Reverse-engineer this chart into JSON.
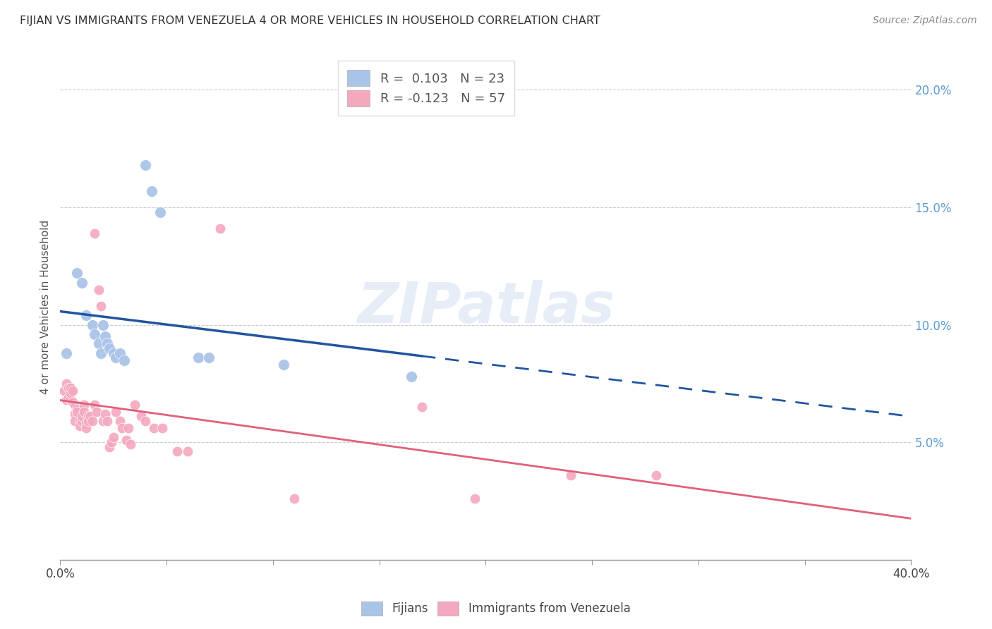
{
  "title": "FIJIAN VS IMMIGRANTS FROM VENEZUELA 4 OR MORE VEHICLES IN HOUSEHOLD CORRELATION CHART",
  "source": "Source: ZipAtlas.com",
  "ylabel": "4 or more Vehicles in Household",
  "xlim": [
    0.0,
    0.4
  ],
  "ylim": [
    0.0,
    0.215
  ],
  "yticks": [
    0.05,
    0.1,
    0.15,
    0.2
  ],
  "right_ytick_labels": [
    "5.0%",
    "10.0%",
    "15.0%",
    "20.0%"
  ],
  "fijian_R": 0.103,
  "fijian_N": 23,
  "venezuela_R": -0.123,
  "venezuela_N": 57,
  "fijian_color": "#aac4e8",
  "venezuela_color": "#f4a8be",
  "fijian_line_color": "#2155a0",
  "venezuela_line_color": "#e0607a",
  "watermark_text": "ZIPatlas",
  "legend_fijian_label": "Fijians",
  "legend_venezuela_label": "Immigrants from Venezuela",
  "fijian_points": [
    [
      0.003,
      0.088
    ],
    [
      0.008,
      0.122
    ],
    [
      0.01,
      0.118
    ],
    [
      0.012,
      0.104
    ],
    [
      0.015,
      0.1
    ],
    [
      0.016,
      0.096
    ],
    [
      0.018,
      0.092
    ],
    [
      0.019,
      0.088
    ],
    [
      0.02,
      0.1
    ],
    [
      0.021,
      0.095
    ],
    [
      0.022,
      0.092
    ],
    [
      0.023,
      0.09
    ],
    [
      0.025,
      0.088
    ],
    [
      0.026,
      0.086
    ],
    [
      0.028,
      0.088
    ],
    [
      0.03,
      0.085
    ],
    [
      0.04,
      0.168
    ],
    [
      0.043,
      0.157
    ],
    [
      0.047,
      0.148
    ],
    [
      0.065,
      0.086
    ],
    [
      0.07,
      0.086
    ],
    [
      0.105,
      0.083
    ],
    [
      0.165,
      0.078
    ]
  ],
  "venezuela_points": [
    [
      0.002,
      0.072
    ],
    [
      0.003,
      0.068
    ],
    [
      0.003,
      0.075
    ],
    [
      0.004,
      0.069
    ],
    [
      0.004,
      0.073
    ],
    [
      0.005,
      0.068
    ],
    [
      0.005,
      0.071
    ],
    [
      0.005,
      0.073
    ],
    [
      0.006,
      0.067
    ],
    [
      0.006,
      0.072
    ],
    [
      0.007,
      0.062
    ],
    [
      0.007,
      0.059
    ],
    [
      0.007,
      0.066
    ],
    [
      0.008,
      0.064
    ],
    [
      0.008,
      0.063
    ],
    [
      0.009,
      0.059
    ],
    [
      0.016,
      0.139
    ],
    [
      0.018,
      0.115
    ],
    [
      0.019,
      0.108
    ],
    [
      0.009,
      0.057
    ],
    [
      0.01,
      0.059
    ],
    [
      0.01,
      0.061
    ],
    [
      0.011,
      0.066
    ],
    [
      0.011,
      0.063
    ],
    [
      0.012,
      0.058
    ],
    [
      0.012,
      0.056
    ],
    [
      0.013,
      0.061
    ],
    [
      0.013,
      0.059
    ],
    [
      0.014,
      0.061
    ],
    [
      0.015,
      0.059
    ],
    [
      0.016,
      0.066
    ],
    [
      0.017,
      0.063
    ],
    [
      0.02,
      0.059
    ],
    [
      0.021,
      0.062
    ],
    [
      0.022,
      0.059
    ],
    [
      0.023,
      0.048
    ],
    [
      0.024,
      0.05
    ],
    [
      0.025,
      0.052
    ],
    [
      0.026,
      0.063
    ],
    [
      0.028,
      0.059
    ],
    [
      0.029,
      0.056
    ],
    [
      0.031,
      0.051
    ],
    [
      0.032,
      0.056
    ],
    [
      0.033,
      0.049
    ],
    [
      0.035,
      0.066
    ],
    [
      0.038,
      0.061
    ],
    [
      0.04,
      0.059
    ],
    [
      0.044,
      0.056
    ],
    [
      0.048,
      0.056
    ],
    [
      0.055,
      0.046
    ],
    [
      0.06,
      0.046
    ],
    [
      0.075,
      0.141
    ],
    [
      0.11,
      0.026
    ],
    [
      0.17,
      0.065
    ],
    [
      0.195,
      0.026
    ],
    [
      0.24,
      0.036
    ],
    [
      0.28,
      0.036
    ]
  ]
}
